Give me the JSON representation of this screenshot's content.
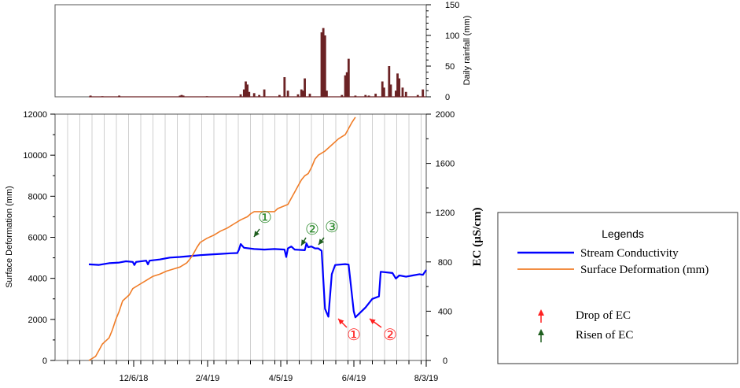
{
  "chart_data": [
    {
      "type": "bar",
      "ylabel": "Daily rainfall (mm)",
      "ylim": [
        0,
        150
      ],
      "yticks": [
        0,
        50,
        100,
        150
      ],
      "bar_color": "#6b2224",
      "x_note": "",
      "bars": [
        {
          "x": 0.005,
          "v": 2
        },
        {
          "x": 0.04,
          "v": 1
        },
        {
          "x": 0.09,
          "v": 2
        },
        {
          "x": 0.27,
          "v": 2
        },
        {
          "x": 0.275,
          "v": 3
        },
        {
          "x": 0.28,
          "v": 2
        },
        {
          "x": 0.35,
          "v": 1
        },
        {
          "x": 0.45,
          "v": 4
        },
        {
          "x": 0.46,
          "v": 12
        },
        {
          "x": 0.465,
          "v": 25
        },
        {
          "x": 0.47,
          "v": 20
        },
        {
          "x": 0.475,
          "v": 8
        },
        {
          "x": 0.49,
          "v": 6
        },
        {
          "x": 0.505,
          "v": 3
        },
        {
          "x": 0.52,
          "v": 12
        },
        {
          "x": 0.565,
          "v": 3
        },
        {
          "x": 0.58,
          "v": 32
        },
        {
          "x": 0.59,
          "v": 10
        },
        {
          "x": 0.62,
          "v": 4
        },
        {
          "x": 0.63,
          "v": 12
        },
        {
          "x": 0.635,
          "v": 10
        },
        {
          "x": 0.64,
          "v": 30
        },
        {
          "x": 0.655,
          "v": 5
        },
        {
          "x": 0.69,
          "v": 105
        },
        {
          "x": 0.695,
          "v": 112
        },
        {
          "x": 0.7,
          "v": 100
        },
        {
          "x": 0.705,
          "v": 10
        },
        {
          "x": 0.75,
          "v": 3
        },
        {
          "x": 0.76,
          "v": 35
        },
        {
          "x": 0.765,
          "v": 40
        },
        {
          "x": 0.77,
          "v": 62
        },
        {
          "x": 0.79,
          "v": 2
        },
        {
          "x": 0.82,
          "v": 3
        },
        {
          "x": 0.83,
          "v": 2
        },
        {
          "x": 0.85,
          "v": 5
        },
        {
          "x": 0.87,
          "v": 25
        },
        {
          "x": 0.875,
          "v": 15
        },
        {
          "x": 0.89,
          "v": 50
        },
        {
          "x": 0.895,
          "v": 20
        },
        {
          "x": 0.91,
          "v": 10
        },
        {
          "x": 0.915,
          "v": 38
        },
        {
          "x": 0.92,
          "v": 30
        },
        {
          "x": 0.93,
          "v": 15
        },
        {
          "x": 0.94,
          "v": 8
        },
        {
          "x": 0.975,
          "v": 3
        },
        {
          "x": 0.99,
          "v": 12
        }
      ]
    },
    {
      "type": "line",
      "ylabel_left": "Surface Deformation (mm)",
      "ylabel_right": "EC (µS/cm)",
      "ylim_left": [
        0,
        12000
      ],
      "yticks_left": [
        0,
        2000,
        4000,
        6000,
        8000,
        10000,
        12000
      ],
      "ylim_right": [
        0,
        2000
      ],
      "yticks_right": [
        0,
        400,
        800,
        1200,
        1600,
        2000
      ],
      "xticks": [
        "12/6/18",
        "2/4/19",
        "4/5/19",
        "6/4/19",
        "8/3/19"
      ],
      "grid": true,
      "series": [
        {
          "name": "Stream Conductivity",
          "color": "#0000ff",
          "axis": "right",
          "points": [
            [
              0.0,
              780
            ],
            [
              0.03,
              776
            ],
            [
              0.06,
              790
            ],
            [
              0.09,
              795
            ],
            [
              0.11,
              805
            ],
            [
              0.13,
              800
            ],
            [
              0.135,
              775
            ],
            [
              0.14,
              800
            ],
            [
              0.17,
              810
            ],
            [
              0.175,
              780
            ],
            [
              0.18,
              810
            ],
            [
              0.21,
              820
            ],
            [
              0.24,
              835
            ],
            [
              0.27,
              840
            ],
            [
              0.3,
              847
            ],
            [
              0.33,
              855
            ],
            [
              0.36,
              860
            ],
            [
              0.39,
              865
            ],
            [
              0.42,
              870
            ],
            [
              0.44,
              872
            ],
            [
              0.445,
              900
            ],
            [
              0.45,
              945
            ],
            [
              0.46,
              915
            ],
            [
              0.49,
              905
            ],
            [
              0.52,
              900
            ],
            [
              0.55,
              905
            ],
            [
              0.58,
              900
            ],
            [
              0.585,
              840
            ],
            [
              0.59,
              910
            ],
            [
              0.6,
              925
            ],
            [
              0.61,
              900
            ],
            [
              0.64,
              895
            ],
            [
              0.645,
              950
            ],
            [
              0.65,
              920
            ],
            [
              0.66,
              925
            ],
            [
              0.67,
              910
            ],
            [
              0.68,
              910
            ],
            [
              0.69,
              890
            ],
            [
              0.7,
              420
            ],
            [
              0.71,
              355
            ],
            [
              0.72,
              700
            ],
            [
              0.73,
              775
            ],
            [
              0.76,
              782
            ],
            [
              0.77,
              778
            ],
            [
              0.785,
              400
            ],
            [
              0.79,
              350
            ],
            [
              0.82,
              430
            ],
            [
              0.84,
              500
            ],
            [
              0.86,
              520
            ],
            [
              0.865,
              720
            ],
            [
              0.9,
              710
            ],
            [
              0.91,
              665
            ],
            [
              0.92,
              690
            ],
            [
              0.94,
              680
            ],
            [
              0.96,
              690
            ],
            [
              0.98,
              700
            ],
            [
              0.99,
              695
            ],
            [
              1.0,
              735
            ]
          ]
        },
        {
          "name": "Surface Deformation (mm)",
          "color": "#f07d28",
          "axis": "left",
          "points": [
            [
              0.0,
              0
            ],
            [
              0.02,
              200
            ],
            [
              0.03,
              500
            ],
            [
              0.04,
              800
            ],
            [
              0.06,
              1100
            ],
            [
              0.07,
              1500
            ],
            [
              0.08,
              2000
            ],
            [
              0.09,
              2400
            ],
            [
              0.1,
              2900
            ],
            [
              0.12,
              3200
            ],
            [
              0.13,
              3500
            ],
            [
              0.15,
              3700
            ],
            [
              0.17,
              3900
            ],
            [
              0.19,
              4100
            ],
            [
              0.21,
              4200
            ],
            [
              0.23,
              4350
            ],
            [
              0.25,
              4450
            ],
            [
              0.27,
              4550
            ],
            [
              0.29,
              4750
            ],
            [
              0.3,
              4950
            ],
            [
              0.31,
              5200
            ],
            [
              0.32,
              5500
            ],
            [
              0.33,
              5750
            ],
            [
              0.35,
              5950
            ],
            [
              0.37,
              6100
            ],
            [
              0.39,
              6300
            ],
            [
              0.41,
              6450
            ],
            [
              0.43,
              6650
            ],
            [
              0.45,
              6850
            ],
            [
              0.47,
              7000
            ],
            [
              0.48,
              7150
            ],
            [
              0.49,
              7250
            ],
            [
              0.5,
              7250
            ],
            [
              0.55,
              7250
            ],
            [
              0.56,
              7400
            ],
            [
              0.59,
              7600
            ],
            [
              0.6,
              7900
            ],
            [
              0.61,
              8200
            ],
            [
              0.62,
              8500
            ],
            [
              0.63,
              8800
            ],
            [
              0.64,
              9000
            ],
            [
              0.65,
              9100
            ],
            [
              0.66,
              9400
            ],
            [
              0.67,
              9800
            ],
            [
              0.68,
              10000
            ],
            [
              0.7,
              10200
            ],
            [
              0.72,
              10500
            ],
            [
              0.74,
              10800
            ],
            [
              0.76,
              11000
            ],
            [
              0.77,
              11300
            ],
            [
              0.78,
              11600
            ],
            [
              0.79,
              11850
            ]
          ]
        }
      ],
      "annotations": [
        {
          "text": "①",
          "kind": "risen",
          "color": "#2e8b2e"
        },
        {
          "text": "②",
          "kind": "risen",
          "color": "#2e8b2e"
        },
        {
          "text": "③",
          "kind": "risen",
          "color": "#2e8b2e"
        },
        {
          "text": "①",
          "kind": "drop",
          "color": "#ff2020"
        },
        {
          "text": "②",
          "kind": "drop",
          "color": "#ff2020"
        }
      ]
    }
  ],
  "legend": {
    "title": "Legends",
    "items": [
      {
        "label": "Stream Conductivity",
        "color": "#0000ff"
      },
      {
        "label": "Surface Deformation (mm)",
        "color": "#f07d28"
      }
    ],
    "markers": [
      {
        "label": "Drop of EC",
        "color": "#ff2020"
      },
      {
        "label": "Risen of EC",
        "color": "#1f5f1f"
      }
    ]
  }
}
